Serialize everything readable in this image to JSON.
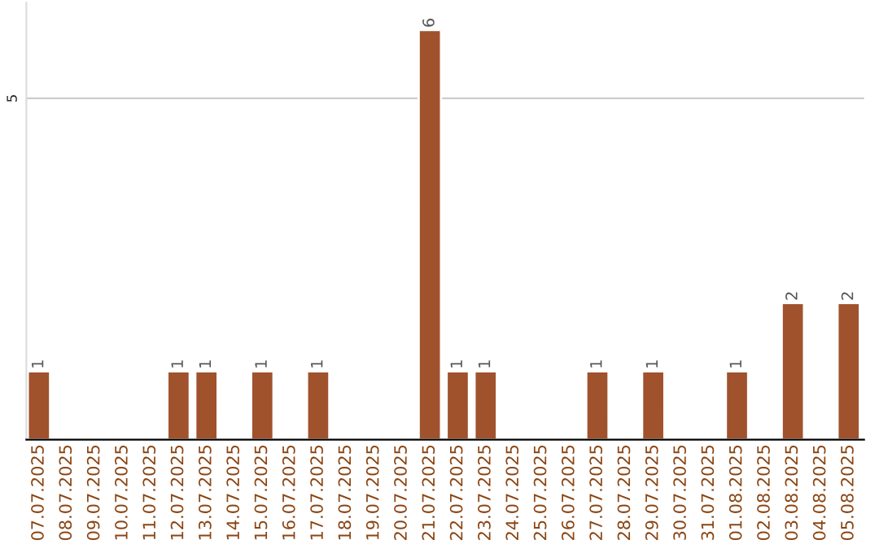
{
  "chart_data": {
    "type": "bar",
    "categories": [
      "07.07.2025",
      "08.07.2025",
      "09.07.2025",
      "10.07.2025",
      "11.07.2025",
      "12.07.2025",
      "13.07.2025",
      "14.07.2025",
      "15.07.2025",
      "16.07.2025",
      "17.07.2025",
      "18.07.2025",
      "19.07.2025",
      "20.07.2025",
      "21.07.2025",
      "22.07.2025",
      "23.07.2025",
      "24.07.2025",
      "25.07.2025",
      "26.07.2025",
      "27.07.2025",
      "28.07.2025",
      "29.07.2025",
      "30.07.2025",
      "31.07.2025",
      "01.08.2025",
      "02.08.2025",
      "03.08.2025",
      "04.08.2025",
      "05.08.2025"
    ],
    "values": [
      1,
      null,
      null,
      null,
      null,
      1,
      1,
      null,
      1,
      null,
      1,
      null,
      null,
      null,
      6,
      1,
      1,
      null,
      null,
      null,
      1,
      null,
      1,
      null,
      null,
      1,
      null,
      2,
      null,
      2
    ],
    "value_labels": [
      "1",
      null,
      null,
      null,
      null,
      "1",
      "1",
      null,
      "1",
      null,
      "1",
      null,
      null,
      null,
      "6",
      "1",
      "1",
      null,
      null,
      null,
      "1",
      null,
      "1",
      null,
      null,
      "1",
      null,
      "2",
      null,
      "2"
    ],
    "color": "#a0522d",
    "ylim": [
      0,
      6.4
    ],
    "yticks": [
      5
    ],
    "grid": "y"
  }
}
